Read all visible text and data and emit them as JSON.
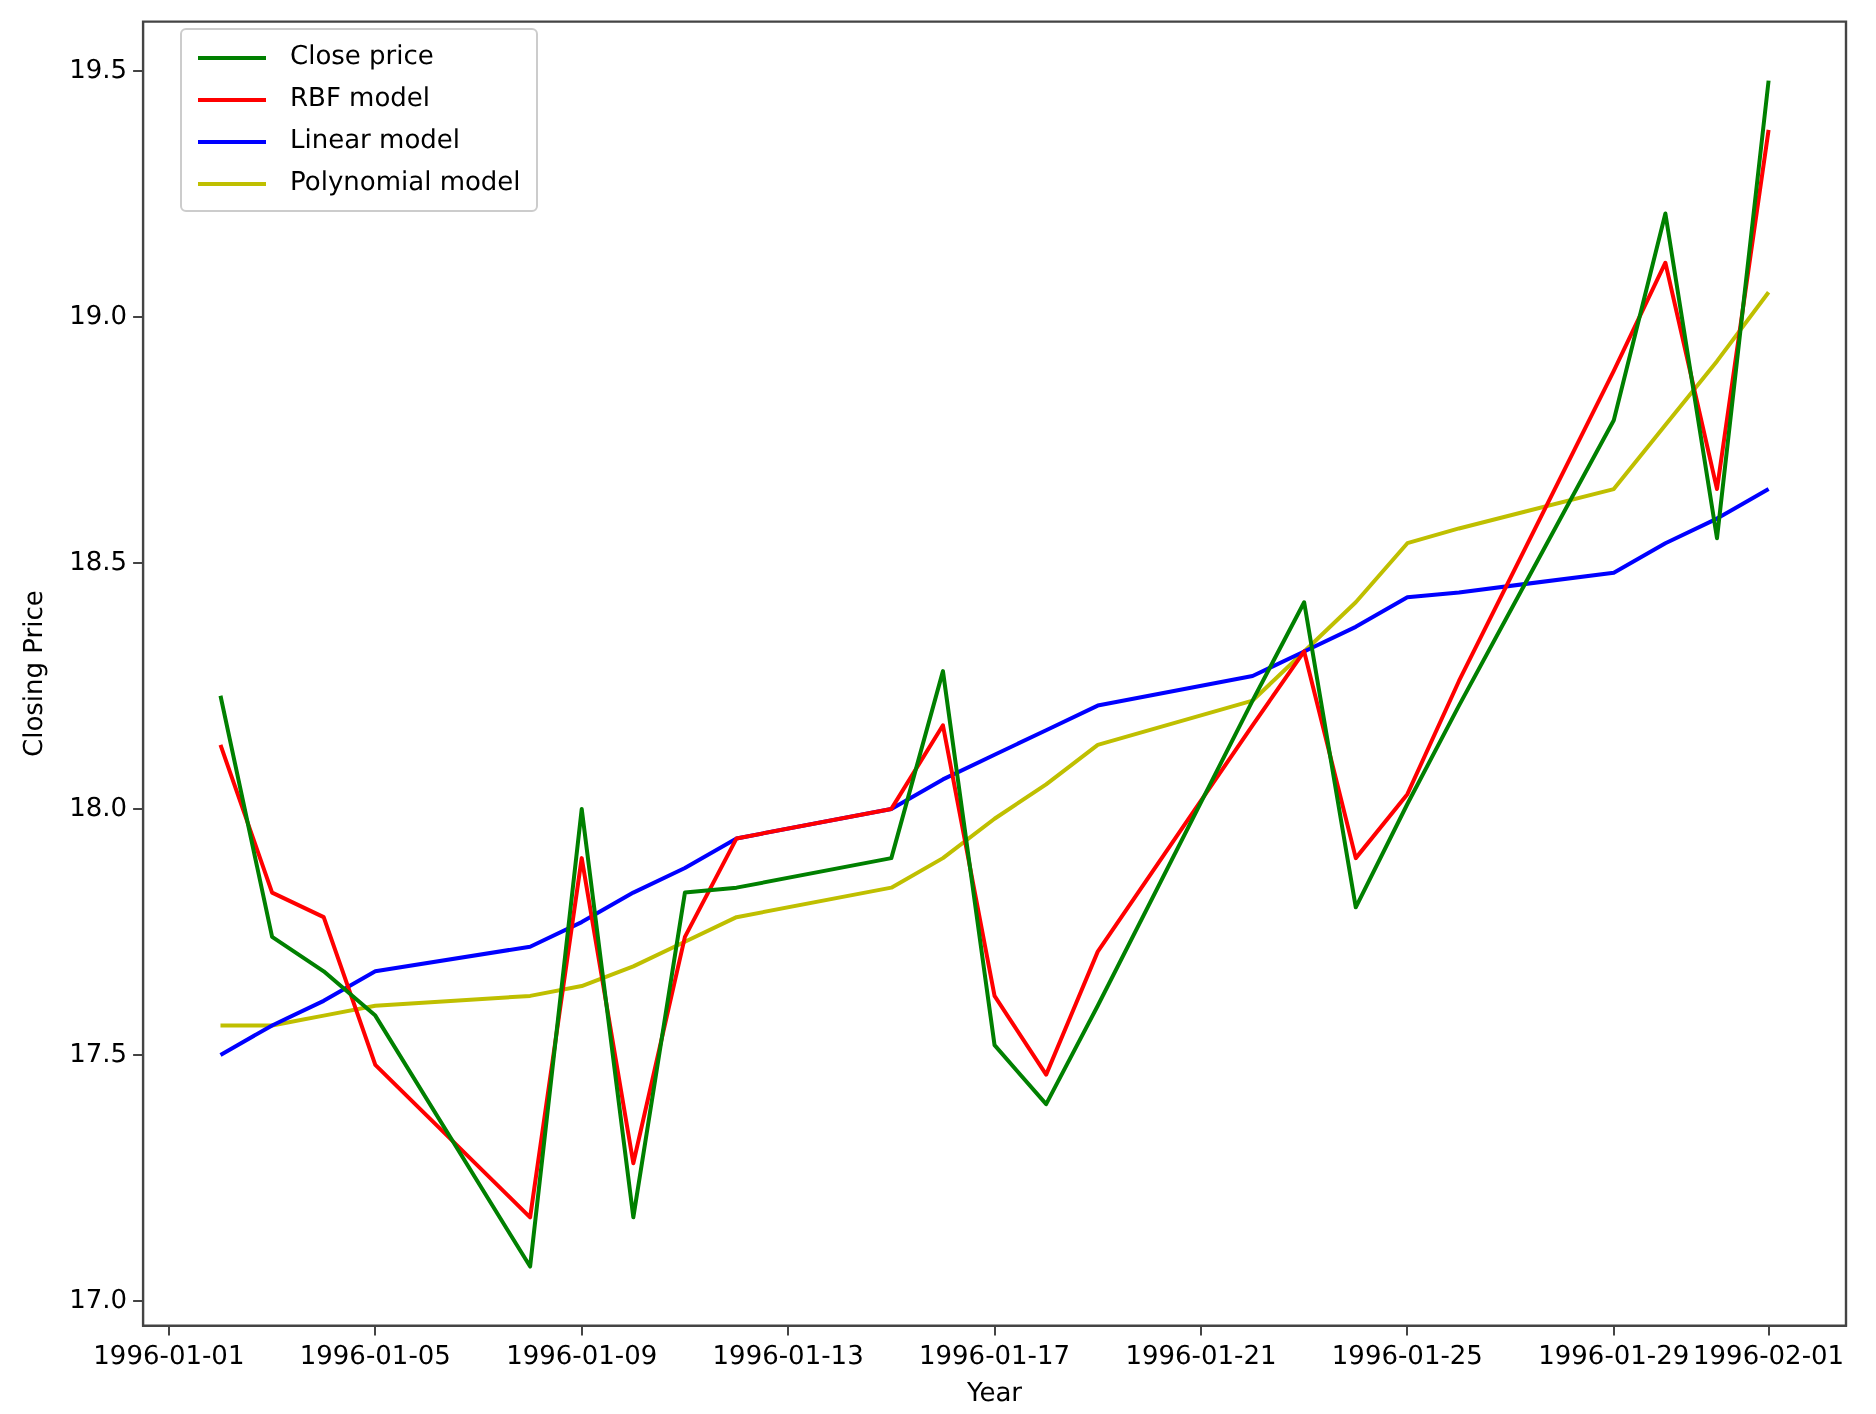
{
  "chart_data": {
    "type": "line",
    "xlabel": "Year",
    "ylabel": "Closing Price",
    "x": [
      "1996-01-02",
      "1996-01-03",
      "1996-01-04",
      "1996-01-05",
      "1996-01-08",
      "1996-01-09",
      "1996-01-10",
      "1996-01-11",
      "1996-01-12",
      "1996-01-15",
      "1996-01-16",
      "1996-01-17",
      "1996-01-18",
      "1996-01-19",
      "1996-01-22",
      "1996-01-23",
      "1996-01-24",
      "1996-01-25",
      "1996-01-26",
      "1996-01-29",
      "1996-01-30",
      "1996-01-31",
      "1996-02-01"
    ],
    "series": [
      {
        "name": "Close price",
        "color": "#008000",
        "values": [
          18.23,
          17.74,
          17.67,
          17.58,
          17.07,
          18.0,
          17.17,
          17.83,
          17.84,
          17.9,
          18.28,
          17.52,
          17.4,
          17.6,
          18.22,
          18.42,
          17.8,
          18.01,
          18.21,
          18.79,
          19.21,
          18.55,
          19.48
        ]
      },
      {
        "name": "RBF model",
        "color": "#ff0000",
        "values": [
          18.13,
          17.83,
          17.78,
          17.48,
          17.17,
          17.9,
          17.28,
          17.74,
          17.94,
          18.0,
          18.17,
          17.62,
          17.46,
          17.71,
          18.17,
          18.32,
          17.9,
          18.03,
          18.26,
          18.89,
          19.11,
          18.65,
          19.38
        ]
      },
      {
        "name": "Linear model",
        "color": "#0000ff",
        "values": [
          17.5,
          17.56,
          17.61,
          17.67,
          17.72,
          17.77,
          17.83,
          17.88,
          17.94,
          18.0,
          18.06,
          18.11,
          18.16,
          18.21,
          18.27,
          18.32,
          18.37,
          18.43,
          18.44,
          18.48,
          18.54,
          18.59,
          18.65
        ]
      },
      {
        "name": "Polynomial model",
        "color": "#bfbf00",
        "values": [
          17.56,
          17.56,
          17.58,
          17.6,
          17.62,
          17.64,
          17.68,
          17.73,
          17.78,
          17.84,
          17.9,
          17.98,
          18.05,
          18.13,
          18.22,
          18.32,
          18.42,
          18.54,
          18.57,
          18.65,
          18.78,
          18.91,
          19.05
        ]
      }
    ],
    "xlim": [
      "1995-12-31T12:00",
      "1996-02-02T12:00"
    ],
    "xticks": [
      "1996-01-01",
      "1996-01-05",
      "1996-01-09",
      "1996-01-13",
      "1996-01-17",
      "1996-01-21",
      "1996-01-25",
      "1996-01-29",
      "1996-02-01"
    ],
    "ylim": [
      16.95,
      19.6
    ],
    "yticks": [
      {
        "value": 17,
        "label": "17.0"
      },
      17.5,
      {
        "value": 18,
        "label": "18.0"
      },
      18.5,
      {
        "value": 19,
        "label": "19.0"
      },
      19.5
    ],
    "legend": "top left",
    "grid": false
  }
}
